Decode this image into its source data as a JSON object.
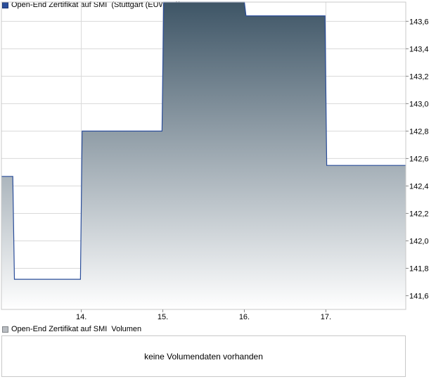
{
  "legend": {
    "price_name": "Open-End Zertifikat auf SMI",
    "price_exchange": "(Stuttgart (EUWAX))",
    "volume_name": "Open-End Zertifikat auf SMI",
    "volume_label": "Volumen"
  },
  "volume_panel": {
    "message": "keine Volumendaten vorhanden"
  },
  "colors": {
    "line": "#2a4d9a",
    "fill_top": "#3e5566",
    "fill_bottom": "#ffffff",
    "grid": "#d9d9d9"
  },
  "chart_data": {
    "type": "area",
    "title": "",
    "xlabel": "",
    "ylabel": "",
    "x_ticks": [
      {
        "label": "14.",
        "x": 14
      },
      {
        "label": "15.",
        "x": 15
      },
      {
        "label": "16.",
        "x": 16
      },
      {
        "label": "17.",
        "x": 17
      }
    ],
    "xlim": [
      13.02,
      17.98
    ],
    "ylim": [
      141.5,
      143.74
    ],
    "y_ticks": [
      {
        "label": "143,6",
        "value": 143.6
      },
      {
        "label": "143,4",
        "value": 143.4
      },
      {
        "label": "143,2",
        "value": 143.2
      },
      {
        "label": "143,0",
        "value": 143.0
      },
      {
        "label": "142,8",
        "value": 142.8
      },
      {
        "label": "142,6",
        "value": 142.6
      },
      {
        "label": "142,4",
        "value": 142.4
      },
      {
        "label": "142,2",
        "value": 142.2
      },
      {
        "label": "142,0",
        "value": 142.0
      },
      {
        "label": "141,8",
        "value": 141.8
      },
      {
        "label": "141,6",
        "value": 141.6
      }
    ],
    "grid": true,
    "series": [
      {
        "step": "post",
        "points": [
          {
            "x": 13.02,
            "y": 142.47
          },
          {
            "x": 13.16,
            "y": 142.47
          },
          {
            "x": 13.18,
            "y": 141.72
          },
          {
            "x": 13.99,
            "y": 141.72
          },
          {
            "x": 14.01,
            "y": 142.8
          },
          {
            "x": 14.99,
            "y": 142.8
          },
          {
            "x": 15.01,
            "y": 143.74
          },
          {
            "x": 16.0,
            "y": 143.74
          },
          {
            "x": 16.02,
            "y": 143.64
          },
          {
            "x": 16.99,
            "y": 143.64
          },
          {
            "x": 17.01,
            "y": 142.55
          },
          {
            "x": 17.98,
            "y": 142.55
          }
        ]
      }
    ]
  }
}
